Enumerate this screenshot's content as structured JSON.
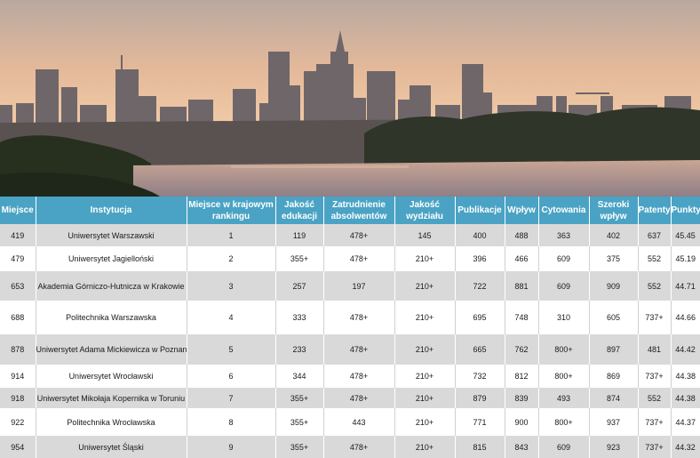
{
  "table": {
    "headers": [
      "Miejsce",
      "Instytucja",
      "Miejsce w krajowym rankingu",
      "Jakość edukacji",
      "Zatrudnienie absolwentów",
      "Jakość wydziału",
      "Publikacje",
      "Wpływ",
      "Cytowania",
      "Szeroki wpływ",
      "Patenty",
      "Punkty"
    ],
    "rows": [
      [
        "419",
        "Uniwersytet Warszawski",
        "1",
        "119",
        "478+",
        "145",
        "400",
        "488",
        "363",
        "402",
        "637",
        "45.45"
      ],
      [
        "479",
        "Uniwersytet Jagielloński",
        "2",
        "355+",
        "478+",
        "210+",
        "396",
        "466",
        "609",
        "375",
        "552",
        "45.19"
      ],
      [
        "653",
        "Akademia Górniczo-Hutnicza w Krakowie",
        "3",
        "257",
        "197",
        "210+",
        "722",
        "881",
        "609",
        "909",
        "552",
        "44.71"
      ],
      [
        "688",
        "Politechnika Warszawska",
        "4",
        "333",
        "478+",
        "210+",
        "695",
        "748",
        "310",
        "605",
        "737+",
        "44.66"
      ],
      [
        "878",
        "Uniwersytet Adama Mickiewicza w Poznaniu",
        "5",
        "233",
        "478+",
        "210+",
        "665",
        "762",
        "800+",
        "897",
        "481",
        "44.42"
      ],
      [
        "914",
        "Uniwersytet Wrocławski",
        "6",
        "344",
        "478+",
        "210+",
        "732",
        "812",
        "800+",
        "869",
        "737+",
        "44.38"
      ],
      [
        "918",
        "Uniwersytet Mikołaja Kopernika w Toruniu",
        "7",
        "355+",
        "478+",
        "210+",
        "879",
        "839",
        "493",
        "874",
        "552",
        "44.38"
      ],
      [
        "922",
        "Politechnika Wrocławska",
        "8",
        "355+",
        "443",
        "210+",
        "771",
        "900",
        "800+",
        "937",
        "737+",
        "44.37"
      ],
      [
        "954",
        "Uniwersytet Śląski",
        "9",
        "355+",
        "478+",
        "210+",
        "815",
        "843",
        "609",
        "923",
        "737+",
        "44.32"
      ]
    ]
  },
  "colors": {
    "header_bg": "#4aa3c4",
    "row_alt_bg": "#d9d9d9"
  }
}
